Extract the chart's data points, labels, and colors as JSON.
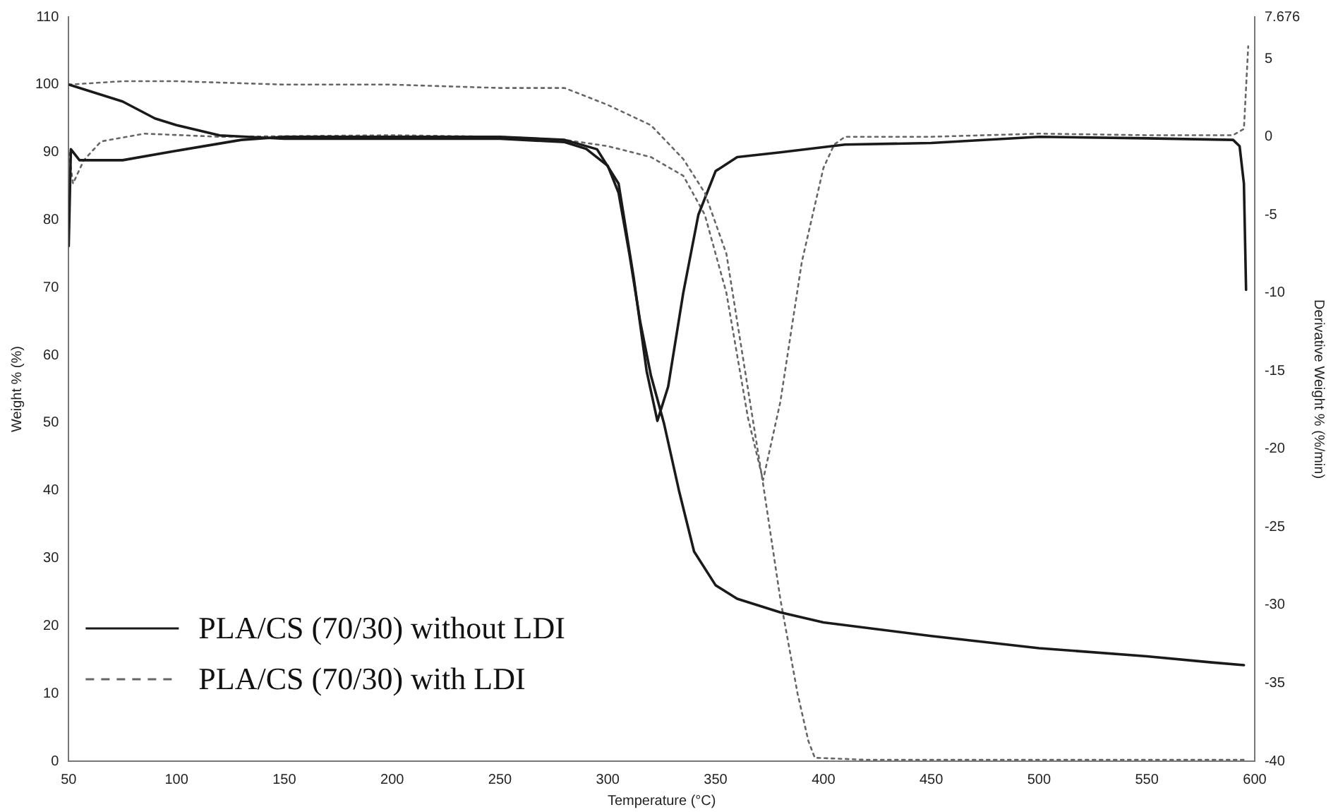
{
  "chart_data": {
    "type": "line",
    "xlabel": "Temperature (°C)",
    "ylabel": "Weight % (%)",
    "y2label": "Derivative Weight % (%/min)",
    "xlim": [
      50,
      600
    ],
    "xticks": [
      50,
      100,
      150,
      200,
      250,
      300,
      350,
      400,
      450,
      500,
      550,
      600
    ],
    "ylim": [
      0,
      110
    ],
    "yticks": [
      0,
      10,
      20,
      30,
      40,
      50,
      60,
      70,
      80,
      90,
      100,
      110
    ],
    "y2lim": [
      -40,
      7.676
    ],
    "y2ticks": [
      -40,
      -35,
      -30,
      -25,
      -20,
      -15,
      -10,
      -5,
      0,
      5,
      7.676
    ],
    "grid": false,
    "legend": "bottom left",
    "marker": "none",
    "series": [
      {
        "name": "PLA/CS (70/30) without LDI",
        "color": "#1a1a1a",
        "line_style": "solid",
        "x": [
          50,
          75,
          90,
          100,
          120,
          150,
          200,
          250,
          280,
          290,
          300,
          305,
          310,
          315,
          320,
          326,
          333,
          340,
          350,
          360,
          380,
          400,
          450,
          500,
          550,
          580,
          595
        ],
        "values": [
          100,
          97.5,
          95,
          94,
          92.5,
          92,
          92,
          92,
          91.5,
          90.5,
          88,
          84,
          75,
          65,
          57,
          50,
          40,
          31,
          26,
          24,
          22,
          20.5,
          18.5,
          16.7,
          15.5,
          14.6,
          14.2
        ]
      },
      {
        "name": "PLA/CS (70/30) with LDI",
        "color": "#666666",
        "line_style": "dotted",
        "x": [
          50,
          75,
          100,
          150,
          200,
          250,
          280,
          300,
          320,
          335,
          345,
          355,
          365,
          372,
          380,
          388,
          393,
          396,
          420,
          500,
          595
        ],
        "values": [
          100,
          100.5,
          100.5,
          100,
          100,
          99.5,
          99.5,
          97,
          94,
          89,
          84,
          75,
          55,
          41,
          24,
          10,
          3,
          0.5,
          0.2,
          0.2,
          0.2
        ]
      },
      {
        "color": "#1a1a1a",
        "line_style": "solid",
        "axis": "y2",
        "x": [
          50,
          51,
          55,
          75,
          100,
          130,
          150,
          200,
          250,
          280,
          295,
          305,
          312,
          318,
          323,
          328,
          335,
          342,
          350,
          360,
          380,
          410,
          450,
          500,
          550,
          590,
          593,
          595,
          596
        ],
        "values": [
          -7,
          -0.8,
          -1.5,
          -1.5,
          -0.9,
          -0.2,
          0,
          0,
          0,
          -0.2,
          -0.8,
          -3,
          -9,
          -15,
          -18.2,
          -16,
          -10,
          -5,
          -2.2,
          -1.3,
          -1,
          -0.5,
          -0.4,
          0,
          -0.1,
          -0.2,
          -0.6,
          -3,
          -9.8
        ]
      },
      {
        "color": "#666666",
        "line_style": "dotted",
        "axis": "y2",
        "x": [
          50,
          52,
          57,
          65,
          85,
          120,
          200,
          250,
          280,
          300,
          320,
          335,
          345,
          355,
          365,
          372,
          380,
          390,
          400,
          405,
          410,
          450,
          500,
          550,
          590,
          595,
          597
        ],
        "values": [
          -1,
          -3,
          -1.5,
          -0.3,
          0.2,
          0,
          0.1,
          0,
          -0.2,
          -0.6,
          -1.3,
          -2.5,
          -5,
          -10,
          -18,
          -22,
          -17,
          -8,
          -2,
          -0.5,
          0,
          0,
          0.2,
          0.1,
          0.1,
          0.5,
          5.8
        ]
      }
    ]
  }
}
